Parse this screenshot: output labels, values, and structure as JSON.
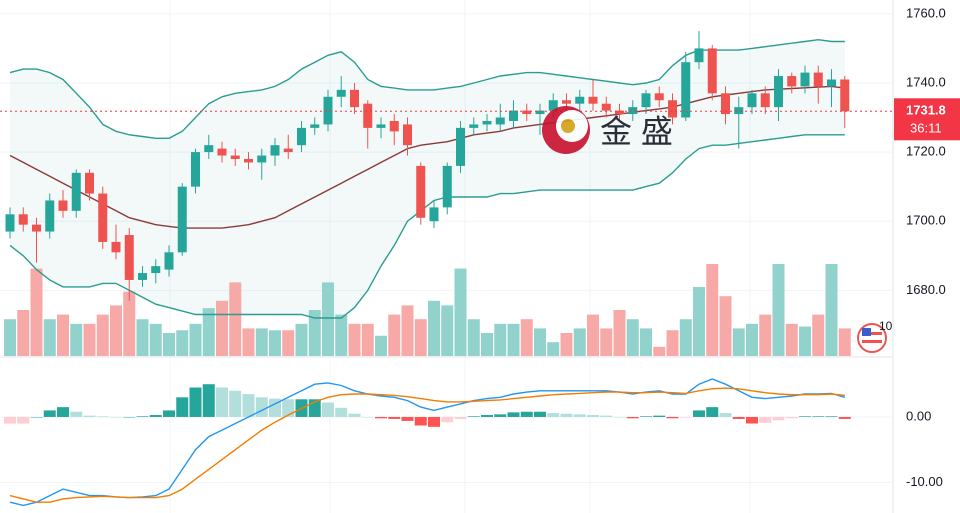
{
  "chart_data": {
    "type": "candlestick",
    "ylim": [
      1661,
      1764
    ],
    "yticks": [
      {
        "value": 1760,
        "label": "1760.0"
      },
      {
        "value": 1740,
        "label": "1740.0"
      },
      {
        "value": 1720,
        "label": "1720.0"
      },
      {
        "value": 1700,
        "label": "1700.0"
      },
      {
        "value": 1680,
        "label": "1680.0"
      }
    ],
    "grid": true,
    "up_color": "#26a69a",
    "down_color": "#ef5350",
    "open": [
      1697,
      1702,
      1699,
      1697,
      1706,
      1703,
      1714,
      1708,
      1694,
      1696,
      1683,
      1685,
      1686,
      1691,
      1710,
      1720,
      1721,
      1719,
      1718,
      1717,
      1719,
      1721,
      1722,
      1727,
      1728,
      1736,
      1738,
      1734,
      1727,
      1729,
      1728,
      1716,
      1700,
      1704,
      1716,
      1727,
      1728,
      1728,
      1729,
      1732,
      1731,
      1732,
      1735,
      1734,
      1736,
      1734,
      1732,
      1731,
      1733,
      1737,
      1735,
      1730,
      1746,
      1750,
      1737,
      1731,
      1733,
      1737,
      1733,
      1742,
      1739,
      1743,
      1739,
      1741
    ],
    "high": [
      1704,
      1704,
      1701,
      1708,
      1709,
      1715,
      1715,
      1710,
      1699,
      1698,
      1687,
      1689,
      1693,
      1711,
      1721,
      1725,
      1723,
      1721,
      1720,
      1721,
      1724,
      1725,
      1729,
      1730,
      1738,
      1742,
      1740,
      1735,
      1730,
      1731,
      1730,
      1717,
      1706,
      1717,
      1729,
      1730,
      1731,
      1734,
      1735,
      1734,
      1734,
      1737,
      1737,
      1738,
      1741,
      1736,
      1734,
      1735,
      1738,
      1739,
      1737,
      1749,
      1755,
      1751,
      1739,
      1736,
      1738,
      1739,
      1744,
      1743,
      1745,
      1745,
      1744,
      1742
    ],
    "low": [
      1695,
      1697,
      1688,
      1695,
      1701,
      1701,
      1706,
      1692,
      1689,
      1677,
      1681,
      1682,
      1684,
      1690,
      1708,
      1718,
      1717,
      1716,
      1715,
      1712,
      1716,
      1718,
      1720,
      1725,
      1726,
      1733,
      1731,
      1721,
      1724,
      1722,
      1719,
      1699,
      1698,
      1702,
      1714,
      1725,
      1726,
      1726,
      1727,
      1729,
      1725,
      1730,
      1732,
      1732,
      1732,
      1730,
      1729,
      1729,
      1731,
      1733,
      1728,
      1729,
      1744,
      1735,
      1728,
      1721,
      1731,
      1731,
      1729,
      1737,
      1737,
      1734,
      1733,
      1727
    ],
    "close": [
      1702,
      1699,
      1697,
      1706,
      1703,
      1714,
      1708,
      1694,
      1691,
      1683,
      1685,
      1687,
      1691,
      1710,
      1720,
      1722,
      1719,
      1718,
      1717,
      1719,
      1722,
      1720,
      1727,
      1728,
      1736,
      1738,
      1733,
      1727,
      1728,
      1726,
      1722,
      1701,
      1704,
      1716,
      1727,
      1728,
      1729,
      1730,
      1732,
      1731,
      1732,
      1735,
      1734,
      1736,
      1734,
      1732,
      1731,
      1733,
      1737,
      1735,
      1730,
      1746,
      1750,
      1737,
      1731,
      1733,
      1737,
      1733,
      1742,
      1739,
      1743,
      1739,
      1741,
      1731.8
    ],
    "bollinger": {
      "color": "#2a9d8f",
      "basis_color": "#8b3a3a",
      "upper": [
        1743,
        1744,
        1744,
        1743,
        1741,
        1737,
        1733,
        1728,
        1726,
        1725,
        1724.5,
        1724,
        1724,
        1726,
        1730,
        1734,
        1736,
        1737,
        1737.5,
        1738,
        1739,
        1741,
        1744,
        1746,
        1748,
        1749,
        1746,
        1741,
        1739,
        1738.5,
        1738,
        1738,
        1738,
        1738.5,
        1739,
        1740,
        1741,
        1742,
        1742.5,
        1743,
        1743,
        1742.5,
        1742,
        1741.5,
        1741,
        1740.5,
        1740,
        1739.5,
        1740,
        1741,
        1745,
        1748,
        1749.5,
        1749.5,
        1749.5,
        1749.5,
        1750,
        1750.5,
        1751,
        1751.5,
        1752,
        1752.5,
        1752,
        1752
      ],
      "basis": [
        1719,
        1717,
        1715,
        1713,
        1711,
        1709,
        1707,
        1705,
        1703,
        1701,
        1700,
        1699,
        1698.5,
        1698,
        1698,
        1698,
        1698,
        1698.5,
        1699,
        1700,
        1701,
        1703,
        1705,
        1707,
        1709,
        1711,
        1713,
        1715,
        1717,
        1719,
        1721,
        1722,
        1722.5,
        1723,
        1724,
        1725,
        1725.5,
        1726,
        1727,
        1727.5,
        1728,
        1728.5,
        1729,
        1729.5,
        1730,
        1730.5,
        1731,
        1731.5,
        1732,
        1732.5,
        1733,
        1734,
        1735,
        1736,
        1736.5,
        1737,
        1737.5,
        1738,
        1738.2,
        1738.4,
        1738.6,
        1738.8,
        1739,
        1738.5
      ],
      "lower": [
        1693,
        1690,
        1686,
        1683,
        1681,
        1681,
        1681,
        1682,
        1682,
        1680,
        1678,
        1676,
        1675,
        1674,
        1673,
        1673,
        1673,
        1673,
        1673,
        1673,
        1673,
        1673,
        1673,
        1672,
        1672,
        1672,
        1675,
        1680,
        1687,
        1693,
        1700,
        1703,
        1706,
        1707,
        1707,
        1707,
        1707,
        1708,
        1708,
        1708.5,
        1709,
        1709,
        1709,
        1709,
        1709,
        1709,
        1709,
        1709,
        1710,
        1711,
        1714,
        1718,
        1721,
        1722,
        1722,
        1722.5,
        1723,
        1723.5,
        1724,
        1724.5,
        1725,
        1725,
        1725,
        1725
      ]
    },
    "volume": {
      "up_color": "#92d2cc",
      "down_color": "#f7a9a7",
      "values": [
        40,
        50,
        95,
        40,
        45,
        35,
        35,
        45,
        55,
        70,
        40,
        35,
        25,
        28,
        35,
        52,
        60,
        80,
        30,
        30,
        28,
        28,
        35,
        50,
        80,
        45,
        35,
        35,
        22,
        45,
        55,
        40,
        60,
        55,
        95,
        40,
        25,
        35,
        35,
        40,
        30,
        15,
        25,
        30,
        45,
        30,
        50,
        40,
        30,
        10,
        28,
        40,
        75,
        100,
        65,
        30,
        35,
        45,
        100,
        35,
        32,
        45,
        100,
        30
      ]
    },
    "last_price": {
      "value": 1731.8,
      "label": "1731.8",
      "countdown": "36:11",
      "color": "#f23645"
    },
    "macd": {
      "ylim": [
        -14.5,
        9
      ],
      "yticks": [
        {
          "value": 0,
          "label": "0.00"
        },
        {
          "value": -10,
          "label": "-10.00"
        }
      ],
      "macd_color": "#2196f3",
      "signal_color": "#f57c00",
      "hist_colors": [
        "#26a69a",
        "#b2dfdb",
        "#ffcdd2",
        "#ff5252"
      ],
      "macd": [
        -13,
        -13.5,
        -13,
        -12,
        -11,
        -11.5,
        -12,
        -12,
        -12.2,
        -12.3,
        -12.2,
        -12,
        -11,
        -8,
        -5,
        -3,
        -2,
        -1,
        0,
        1,
        2,
        3,
        4,
        5,
        5.2,
        4.8,
        4,
        3.5,
        3.2,
        3,
        2.5,
        1.5,
        1,
        1.5,
        2,
        2.5,
        2.8,
        3,
        3.5,
        3.8,
        4,
        4,
        4,
        4,
        4,
        4,
        3.8,
        3.5,
        3.8,
        4,
        3.5,
        3.5,
        5,
        5.8,
        5,
        4,
        3,
        2.8,
        3,
        3.2,
        3.5,
        3.5,
        3.6,
        3
      ],
      "signal": [
        -12,
        -12.5,
        -13,
        -13,
        -12.5,
        -12.3,
        -12.2,
        -12.1,
        -12.2,
        -12.3,
        -12.3,
        -12.3,
        -12,
        -11,
        -9.5,
        -8,
        -6.5,
        -5,
        -3.5,
        -2,
        -0.8,
        0.3,
        1.3,
        2.3,
        3,
        3.4,
        3.5,
        3.5,
        3.4,
        3.3,
        3.1,
        2.8,
        2.5,
        2.3,
        2.3,
        2.4,
        2.5,
        2.6,
        2.8,
        3,
        3.2,
        3.4,
        3.5,
        3.6,
        3.7,
        3.8,
        3.8,
        3.7,
        3.7,
        3.8,
        3.7,
        3.6,
        4,
        4.3,
        4.4,
        4.3,
        4,
        3.7,
        3.5,
        3.4,
        3.4,
        3.4,
        3.5,
        3.3
      ],
      "histogram": [
        -1,
        -1,
        0,
        1,
        1.5,
        0.8,
        0.2,
        0.1,
        0,
        0,
        0.1,
        0.3,
        1,
        3,
        4.5,
        5,
        4.5,
        4,
        3.5,
        3,
        2.8,
        2.7,
        2.7,
        2.7,
        2.2,
        1.4,
        0.5,
        0,
        -0.2,
        -0.3,
        -0.6,
        -1.3,
        -1.5,
        -0.8,
        -0.3,
        0.1,
        0.3,
        0.4,
        0.7,
        0.8,
        0.8,
        0.6,
        0.5,
        0.4,
        0.3,
        0.2,
        0,
        -0.2,
        0.1,
        0.2,
        -0.2,
        -0.1,
        1,
        1.5,
        0.6,
        -0.3,
        -1,
        -0.9,
        -0.5,
        -0.2,
        0.1,
        0.1,
        0.1,
        -0.3
      ]
    },
    "watermark": "金 盛",
    "flag_label": "10"
  }
}
